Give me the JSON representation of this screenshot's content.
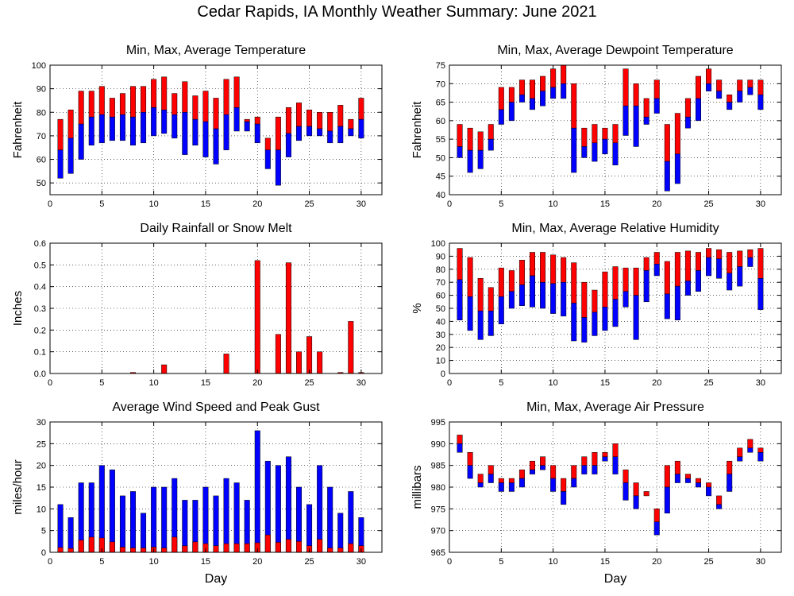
{
  "title": "Cedar Rapids, IA Monthly Weather Summary: June 2021",
  "colors": {
    "max": "#ff0000",
    "min": "#0000ff",
    "grid": "#000000"
  },
  "chart_data": [
    {
      "type": "bar",
      "subtype": "floating-range",
      "title": "Min, Max, Average Temperature",
      "xlabel": "",
      "ylabel": "Fahrenheit",
      "xlim": [
        0,
        32
      ],
      "xticks": [
        0,
        5,
        10,
        15,
        20,
        25,
        30
      ],
      "ylim": [
        45,
        100
      ],
      "yticks": [
        50,
        60,
        70,
        80,
        90,
        100
      ],
      "x": [
        1,
        2,
        3,
        4,
        5,
        6,
        7,
        8,
        9,
        10,
        11,
        12,
        13,
        14,
        15,
        16,
        17,
        18,
        19,
        20,
        21,
        22,
        23,
        24,
        25,
        26,
        27,
        28,
        29,
        30
      ],
      "min": [
        52,
        54,
        60,
        66,
        67,
        68,
        68,
        66,
        67,
        70,
        71,
        69,
        62,
        66,
        61,
        58,
        64,
        72,
        72,
        67,
        56,
        49,
        61,
        68,
        70,
        70,
        67,
        67,
        70,
        69
      ],
      "avg": [
        64,
        69,
        75,
        78,
        79,
        78,
        79,
        78,
        80,
        82,
        81,
        79,
        80,
        77,
        76,
        73,
        79,
        82,
        76,
        75,
        64,
        64,
        71,
        74,
        74,
        73,
        72,
        74,
        73,
        77
      ],
      "max": [
        77,
        81,
        89,
        89,
        91,
        86,
        88,
        91,
        91,
        94,
        95,
        88,
        93,
        87,
        89,
        86,
        94,
        95,
        77,
        78,
        69,
        78,
        82,
        84,
        81,
        80,
        80,
        83,
        77,
        86
      ]
    },
    {
      "type": "bar",
      "subtype": "floating-range",
      "title": "Min, Max, Average Dewpoint Temperature",
      "xlabel": "",
      "ylabel": "Fahrenheit",
      "xlim": [
        0,
        32
      ],
      "xticks": [
        0,
        5,
        10,
        15,
        20,
        25,
        30
      ],
      "ylim": [
        40,
        75
      ],
      "yticks": [
        40,
        45,
        50,
        55,
        60,
        65,
        70,
        75
      ],
      "x": [
        1,
        2,
        3,
        4,
        5,
        6,
        7,
        8,
        9,
        10,
        11,
        12,
        13,
        14,
        15,
        16,
        17,
        18,
        19,
        20,
        21,
        22,
        23,
        24,
        25,
        26,
        27,
        28,
        29,
        30
      ],
      "min": [
        50,
        46,
        47,
        52,
        59,
        60,
        65,
        63,
        64,
        66,
        66,
        46,
        50,
        49,
        51,
        48,
        56,
        53,
        59,
        62,
        41,
        43,
        58,
        60,
        68,
        66,
        63,
        65,
        67,
        63
      ],
      "avg": [
        53,
        52,
        52,
        55,
        63,
        65,
        67,
        66,
        68,
        69,
        70,
        58,
        53,
        54,
        55,
        54,
        64,
        64,
        61,
        66,
        49,
        51,
        61,
        66,
        70,
        68,
        65,
        68,
        69,
        67
      ],
      "max": [
        59,
        58,
        57,
        59,
        69,
        69,
        71,
        71,
        72,
        74,
        75,
        70,
        58,
        59,
        58,
        59,
        74,
        70,
        66,
        71,
        59,
        62,
        66,
        72,
        74,
        71,
        67,
        71,
        71,
        71
      ]
    },
    {
      "type": "bar",
      "title": "Daily Rainfall or Snow Melt",
      "xlabel": "",
      "ylabel": "Inches",
      "xlim": [
        0,
        32
      ],
      "xticks": [
        0,
        5,
        10,
        15,
        20,
        25,
        30
      ],
      "ylim": [
        0,
        0.6
      ],
      "yticks": [
        0.0,
        0.1,
        0.2,
        0.3,
        0.4,
        0.5,
        0.6
      ],
      "x": [
        1,
        2,
        3,
        4,
        5,
        6,
        7,
        8,
        9,
        10,
        11,
        12,
        13,
        14,
        15,
        16,
        17,
        18,
        19,
        20,
        21,
        22,
        23,
        24,
        25,
        26,
        27,
        28,
        29,
        30
      ],
      "values": [
        0,
        0,
        0,
        0,
        0,
        0,
        0,
        0.005,
        0,
        0,
        0.04,
        0,
        0,
        0,
        0,
        0,
        0.09,
        0,
        0,
        0.52,
        0,
        0.18,
        0.51,
        0.1,
        0.17,
        0.1,
        0,
        0.005,
        0.24,
        0.005
      ]
    },
    {
      "type": "bar",
      "subtype": "floating-range",
      "title": "Min, Max, Average Relative Humidity",
      "xlabel": "",
      "ylabel": "%",
      "xlim": [
        0,
        32
      ],
      "xticks": [
        0,
        5,
        10,
        15,
        20,
        25,
        30
      ],
      "ylim": [
        0,
        100
      ],
      "yticks": [
        0,
        10,
        20,
        30,
        40,
        50,
        60,
        70,
        80,
        90,
        100
      ],
      "x": [
        1,
        2,
        3,
        4,
        5,
        6,
        7,
        8,
        9,
        10,
        11,
        12,
        13,
        14,
        15,
        16,
        17,
        18,
        19,
        20,
        21,
        22,
        23,
        24,
        25,
        26,
        27,
        28,
        29,
        30
      ],
      "min": [
        41,
        33,
        26,
        29,
        38,
        50,
        52,
        51,
        50,
        46,
        44,
        25,
        24,
        29,
        33,
        36,
        51,
        26,
        55,
        75,
        42,
        41,
        60,
        63,
        75,
        73,
        64,
        67,
        82,
        49
      ],
      "avg": [
        72,
        59,
        48,
        48,
        59,
        63,
        68,
        75,
        70,
        69,
        70,
        54,
        43,
        47,
        51,
        57,
        63,
        60,
        79,
        84,
        61,
        67,
        71,
        79,
        89,
        88,
        77,
        82,
        89,
        73
      ],
      "max": [
        96,
        89,
        73,
        66,
        81,
        79,
        87,
        93,
        93,
        91,
        89,
        85,
        70,
        64,
        78,
        82,
        81,
        81,
        89,
        93,
        86,
        93,
        94,
        93,
        96,
        95,
        93,
        94,
        95,
        96
      ]
    },
    {
      "type": "bar",
      "title": "Average Wind Speed and Peak Gust",
      "xlabel": "Day",
      "ylabel": "miles/hour",
      "xlim": [
        0,
        32
      ],
      "xticks": [
        0,
        5,
        10,
        15,
        20,
        25,
        30
      ],
      "ylim": [
        0,
        30
      ],
      "yticks": [
        0,
        5,
        10,
        15,
        20,
        25,
        30
      ],
      "x": [
        1,
        2,
        3,
        4,
        5,
        6,
        7,
        8,
        9,
        10,
        11,
        12,
        13,
        14,
        15,
        16,
        17,
        18,
        19,
        20,
        21,
        22,
        23,
        24,
        25,
        26,
        27,
        28,
        29,
        30
      ],
      "series": [
        {
          "name": "",
          "values": [
            11,
            8,
            16,
            16,
            20,
            19,
            13,
            14,
            9,
            15,
            15,
            17,
            12,
            12,
            15,
            13,
            17,
            16,
            12,
            28,
            21,
            20,
            22,
            15,
            11,
            20,
            15,
            9,
            14,
            8
          ]
        },
        {
          "name": "",
          "values": [
            1.1,
            0.9,
            2.8,
            3.5,
            3.3,
            2.4,
            1.2,
            1,
            1,
            1.2,
            1,
            3.5,
            1.5,
            2.4,
            2,
            1.5,
            2,
            2,
            2,
            2.2,
            4,
            2.3,
            3,
            2.5,
            1.5,
            3,
            1,
            1,
            2,
            1.5
          ]
        }
      ]
    },
    {
      "type": "bar",
      "subtype": "floating-range",
      "title": "Min, Max, Average Air Pressure",
      "xlabel": "Day",
      "ylabel": "millibars",
      "xlim": [
        0,
        32
      ],
      "xticks": [
        0,
        5,
        10,
        15,
        20,
        25,
        30
      ],
      "ylim": [
        965,
        995
      ],
      "yticks": [
        965,
        970,
        975,
        980,
        985,
        990,
        995
      ],
      "x": [
        1,
        2,
        3,
        4,
        5,
        6,
        7,
        8,
        9,
        10,
        11,
        12,
        13,
        14,
        15,
        16,
        17,
        18,
        19,
        20,
        21,
        22,
        23,
        24,
        25,
        26,
        27,
        28,
        29,
        30
      ],
      "min": [
        988,
        982,
        980,
        981,
        979,
        979,
        980,
        983,
        984,
        979,
        976,
        980,
        983,
        983,
        986,
        983,
        977,
        975,
        978,
        969,
        974,
        981,
        981,
        980,
        978,
        975,
        979,
        986,
        988,
        986
      ],
      "avg": [
        990,
        985,
        981,
        983,
        981,
        981,
        982,
        984,
        985,
        982,
        979,
        982,
        985,
        985,
        987,
        987,
        981,
        978,
        978,
        972,
        980,
        983,
        982,
        981,
        980,
        976,
        983,
        987,
        989,
        988
      ],
      "max": [
        992,
        988,
        983,
        985,
        982,
        982,
        984,
        986,
        987,
        985,
        982,
        985,
        987,
        988,
        988,
        990,
        984,
        981,
        979,
        975,
        985,
        986,
        983,
        982,
        981,
        978,
        986,
        989,
        991,
        989
      ]
    }
  ]
}
